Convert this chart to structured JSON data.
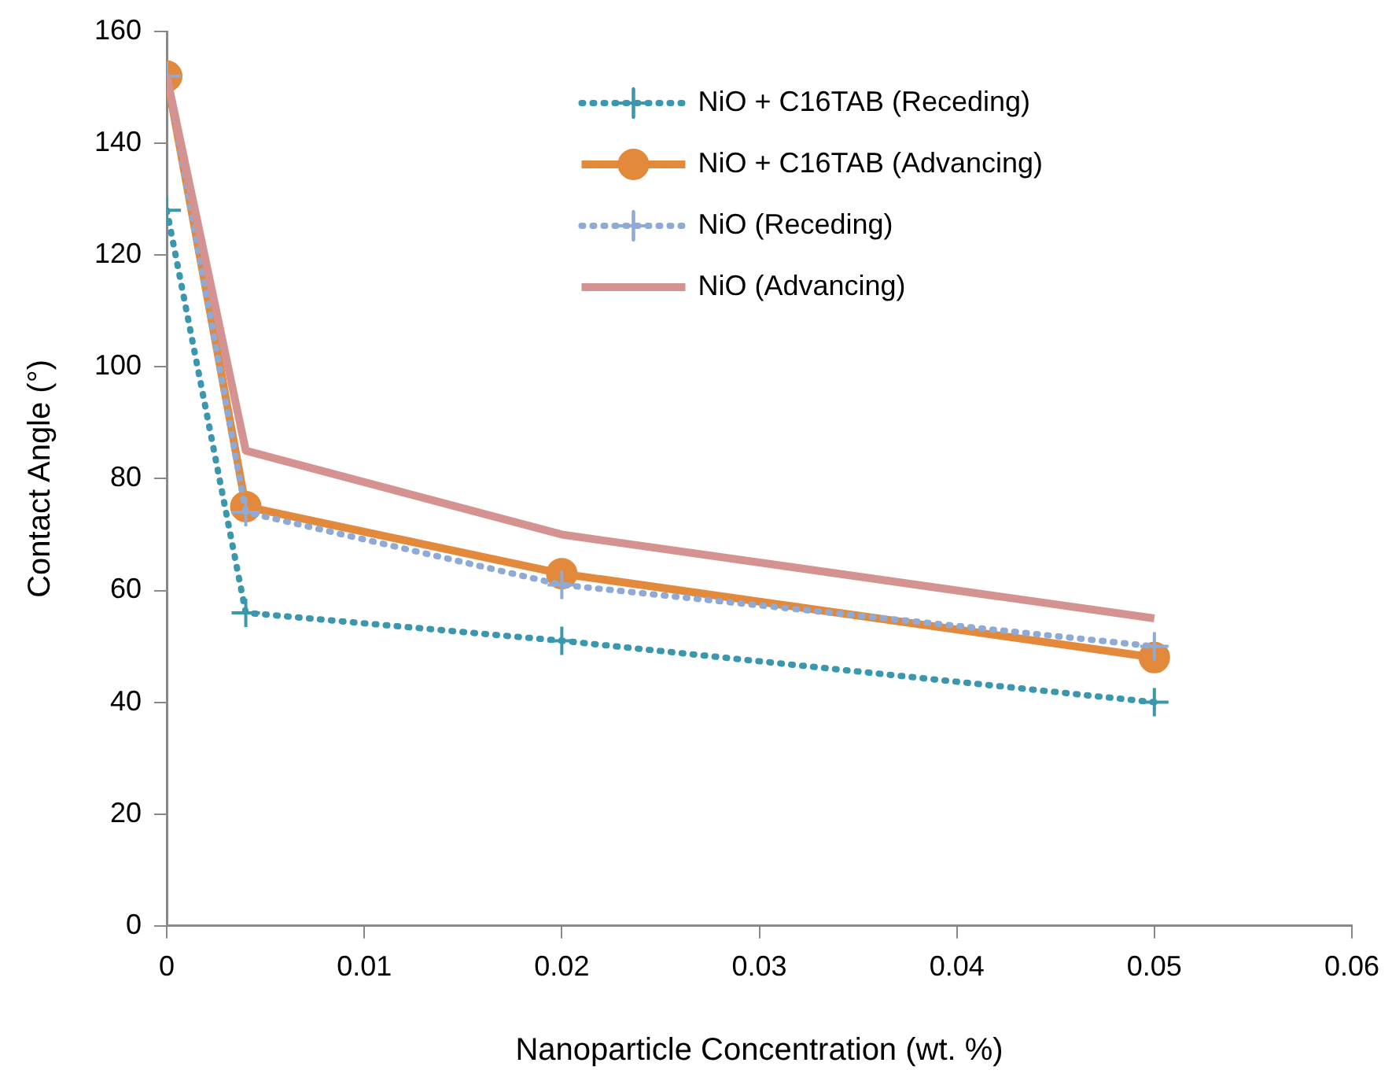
{
  "chart_data": {
    "type": "line",
    "xlabel": "Nanoparticle Concentration (wt. %)",
    "ylabel": "Contact Angle (°)",
    "x": [
      0,
      0.004,
      0.02,
      0.05
    ],
    "xlim": [
      0,
      0.06
    ],
    "xticks": [
      0,
      0.01,
      0.02,
      0.03,
      0.04,
      0.05,
      0.06
    ],
    "ylim": [
      0,
      160
    ],
    "yticks": [
      0,
      20,
      40,
      60,
      80,
      100,
      120,
      140,
      160
    ],
    "grid": false,
    "legend": "top right",
    "series": [
      {
        "name": "NiO + C16TAB (Receding)",
        "color": "#3a97ad",
        "values": [
          128,
          56,
          51,
          40
        ],
        "marker": "cross",
        "line_style": "dotted"
      },
      {
        "name": "NiO + C16TAB (Advancing)",
        "color": "#e2893b",
        "values": [
          152,
          75,
          63,
          48
        ],
        "marker": "circle",
        "line_style": "solid"
      },
      {
        "name": "NiO (Receding)",
        "color": "#8faad4",
        "values": [
          152,
          74,
          61,
          50
        ],
        "marker": "cross",
        "line_style": "dotted"
      },
      {
        "name": "NiO (Advancing)",
        "color": "#d49390",
        "values": [
          152,
          85,
          70,
          55
        ],
        "marker": "none",
        "line_style": "solid"
      }
    ]
  }
}
